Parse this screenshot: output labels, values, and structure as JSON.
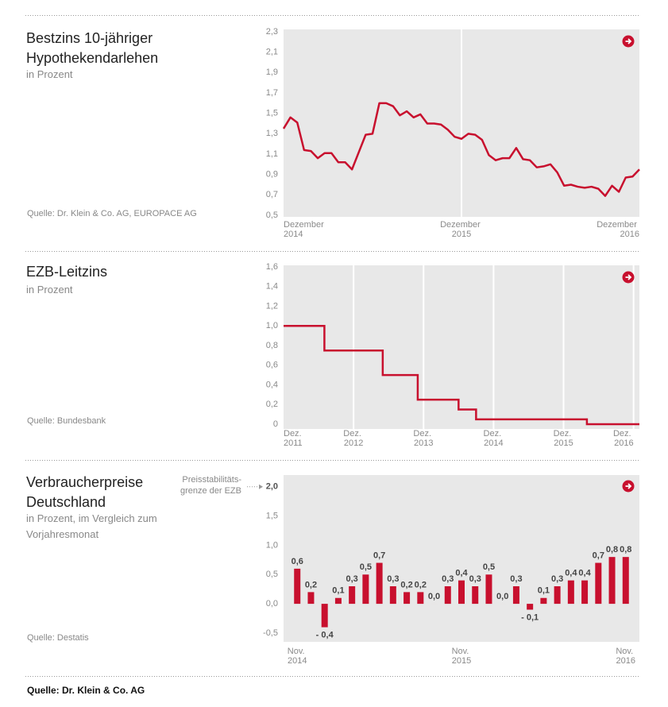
{
  "footer": "Quelle: Dr. Klein & Co. AG",
  "chart_data": [
    {
      "type": "line",
      "title": "Bestzins 10-jähriger Hypothekendarlehen",
      "subtitle": "in Prozent",
      "source": "Quelle: Dr. Klein & Co. AG, EUROPACE AG",
      "color": "#c8102e",
      "grid": "x",
      "categories": [
        "Dezember 2014",
        null,
        null,
        null,
        null,
        null,
        null,
        null,
        null,
        null,
        null,
        null,
        null,
        null,
        null,
        null,
        null,
        null,
        null,
        null,
        null,
        null,
        null,
        null,
        null,
        null,
        "Dezember 2015",
        null,
        null,
        null,
        null,
        null,
        null,
        null,
        null,
        null,
        null,
        null,
        null,
        null,
        null,
        null,
        null,
        null,
        null,
        null,
        null,
        null,
        null,
        null,
        null,
        null,
        "Dezember 2016"
      ],
      "values": [
        1.35,
        1.46,
        1.41,
        1.14,
        1.13,
        1.06,
        1.11,
        1.11,
        1.02,
        1.02,
        0.95,
        1.12,
        1.29,
        1.3,
        1.6,
        1.6,
        1.57,
        1.48,
        1.52,
        1.46,
        1.49,
        1.4,
        1.4,
        1.39,
        1.34,
        1.27,
        1.25,
        1.3,
        1.29,
        1.24,
        1.09,
        1.04,
        1.06,
        1.06,
        1.16,
        1.05,
        1.04,
        0.97,
        0.98,
        1.0,
        0.92,
        0.79,
        0.8,
        0.78,
        0.77,
        0.78,
        0.76,
        0.69,
        0.79,
        0.73,
        0.87,
        0.88,
        0.95
      ],
      "ylim": [
        0.5,
        2.3
      ],
      "yticks": [
        {
          "value": 0.5,
          "label": "0,5"
        },
        {
          "value": 0.7,
          "label": "0,7"
        },
        {
          "value": 0.9,
          "label": "0,9"
        },
        {
          "value": 1.1,
          "label": "1,1"
        },
        {
          "value": 1.3,
          "label": "1,3"
        },
        {
          "value": 1.5,
          "label": "1,5"
        },
        {
          "value": 1.7,
          "label": "1,7"
        },
        {
          "value": 1.9,
          "label": "1,9"
        },
        {
          "value": 2.1,
          "label": "2,1"
        },
        {
          "value": 2.3,
          "label": "2,3"
        }
      ]
    },
    {
      "type": "line",
      "title": "EZB-Leitzins",
      "subtitle": "in Prozent",
      "source": "Quelle: Bundesbank",
      "color": "#c8102e",
      "grid": "x",
      "drawstyle": "steps-post",
      "x": [
        0,
        7,
        17,
        23,
        30,
        33,
        52,
        61
      ],
      "values": [
        1.0,
        0.75,
        0.5,
        0.25,
        0.15,
        0.05,
        0,
        0
      ],
      "xlim": [
        0,
        61
      ],
      "xticks": [
        {
          "value": 0,
          "label": "Dez. 2011"
        },
        {
          "value": 12,
          "label": "Dez. 2012"
        },
        {
          "value": 24,
          "label": "Dez. 2013"
        },
        {
          "value": 36,
          "label": "Dez. 2014"
        },
        {
          "value": 48,
          "label": "Dez. 2015"
        },
        {
          "value": 60,
          "label": "Dez. 2016"
        }
      ],
      "ylim": [
        0,
        1.6
      ],
      "yticks": [
        0,
        {
          "value": 0.2,
          "label": "0,2"
        },
        {
          "value": 0.4,
          "label": "0,4"
        },
        {
          "value": 0.6,
          "label": "0,6"
        },
        {
          "value": 0.8,
          "label": "0,8"
        },
        {
          "value": 1.0,
          "label": "1,0"
        },
        {
          "value": 1.2,
          "label": "1,2"
        },
        {
          "value": 1.4,
          "label": "1,4"
        },
        {
          "value": 1.6,
          "label": "1,6"
        }
      ]
    },
    {
      "type": "bar",
      "title": "Verbraucherpreise Deutschland",
      "subtitle": "in Prozent, im Vergleich zum Vorjahresmonat",
      "source": "Quelle: Destatis",
      "color": "#c8102e",
      "annotation": {
        "text": "Preisstabilitäts-grenze der EZB",
        "value": 2.0
      },
      "categories": [
        "Nov. 2014",
        null,
        null,
        null,
        null,
        null,
        null,
        null,
        null,
        null,
        null,
        null,
        "Nov. 2015",
        null,
        null,
        null,
        null,
        null,
        null,
        null,
        null,
        null,
        null,
        null,
        "Nov. 2016"
      ],
      "values": [
        0.6,
        0.2,
        -0.4,
        0.1,
        0.3,
        0.5,
        0.7,
        0.3,
        0.2,
        0.2,
        0.0,
        0.3,
        0.4,
        0.3,
        0.5,
        0.0,
        0.3,
        -0.1,
        0.1,
        0.3,
        0.4,
        0.4,
        0.7,
        0.8,
        0.8
      ],
      "value_labels": [
        "0,6",
        "0,2",
        "- 0,4",
        "0,1",
        "0,3",
        "0,5",
        "0,7",
        "0,3",
        "0,2",
        "0,2",
        "0,0",
        "0,3",
        "0,4",
        "0,3",
        "0,5",
        "0,0",
        "0,3",
        "- 0,1",
        "0,1",
        "0,3",
        "0,4",
        "0,4",
        "0,7",
        "0,8",
        "0,8"
      ],
      "ylim": [
        -0.65,
        2.2
      ],
      "yticks": [
        {
          "value": -0.5,
          "label": "-0,5"
        },
        {
          "value": 0.0,
          "label": "0,0"
        },
        {
          "value": 0.5,
          "label": "0,5"
        },
        {
          "value": 1.0,
          "label": "1,0"
        },
        {
          "value": 1.5,
          "label": "1,5"
        },
        {
          "value": 2.0,
          "label": "2,0"
        }
      ]
    }
  ]
}
